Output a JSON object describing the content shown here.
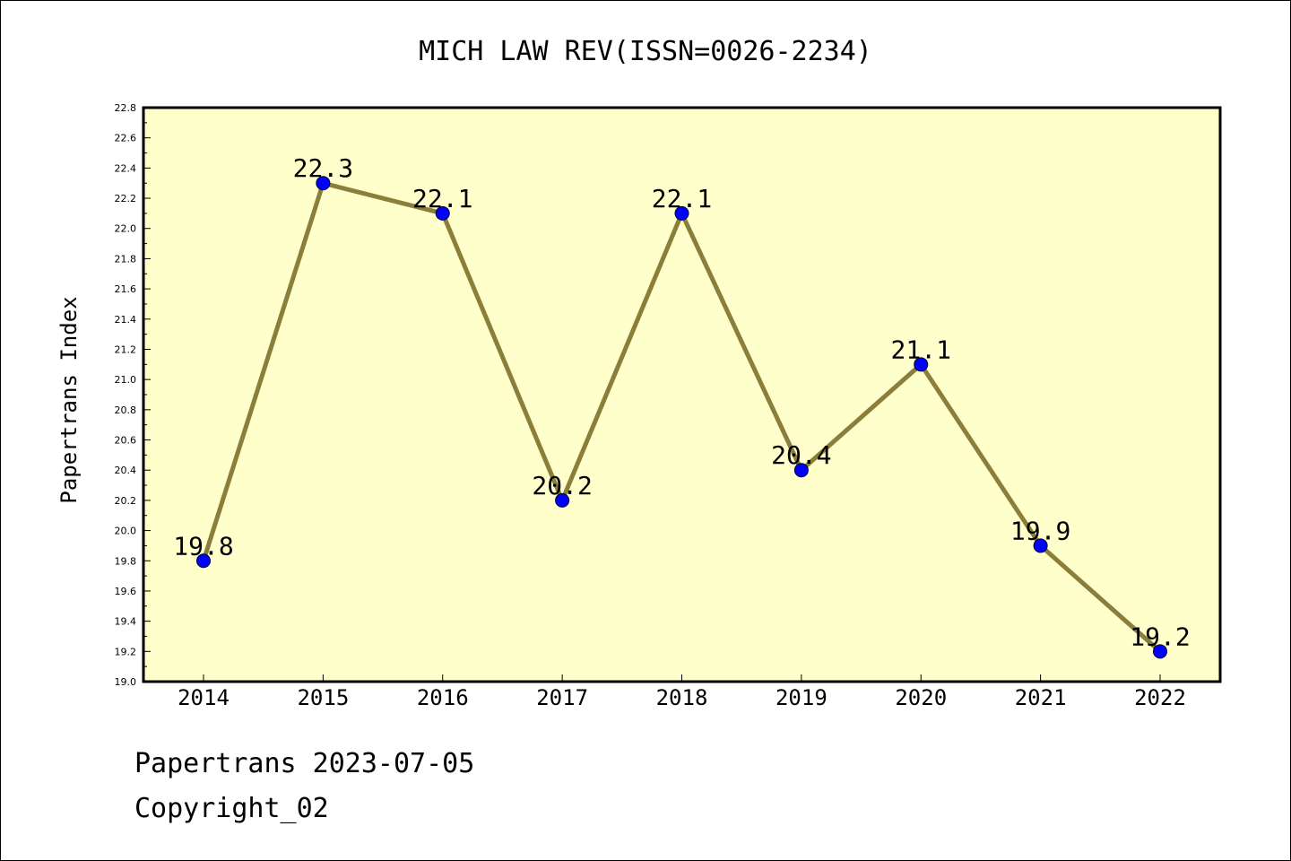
{
  "chart_data": {
    "type": "line",
    "title": "MICH LAW REV(ISSN=0026-2234)",
    "xlabel": "",
    "ylabel": "Papertrans Index",
    "categories": [
      "2014",
      "2015",
      "2016",
      "2017",
      "2018",
      "2019",
      "2020",
      "2021",
      "2022"
    ],
    "series": [
      {
        "values": [
          19.8,
          22.3,
          22.1,
          20.2,
          22.1,
          20.4,
          21.1,
          19.9,
          19.2
        ],
        "data_labels": [
          "19.8",
          "22.3",
          "22.1",
          "20.2",
          "22.1",
          "20.4",
          "21.1",
          "19.9",
          "19.2"
        ]
      }
    ],
    "ylim": [
      19.0,
      22.8
    ],
    "yticks": [
      "19.0",
      "19.2",
      "19.4",
      "19.6",
      "19.8",
      "20.0",
      "20.2",
      "20.4",
      "20.6",
      "20.8",
      "21.0",
      "21.2",
      "21.4",
      "21.6",
      "21.8",
      "22.0",
      "22.2",
      "22.4",
      "22.6",
      "22.8"
    ],
    "grid": false,
    "legend": "none",
    "colors": {
      "plot_background": "#ffffcc",
      "line": "#8b7d3a",
      "marker": "#0000ff",
      "axes": "#000000"
    }
  },
  "footer": {
    "line1": "Papertrans 2023-07-05",
    "line2": "Copyright_02"
  }
}
